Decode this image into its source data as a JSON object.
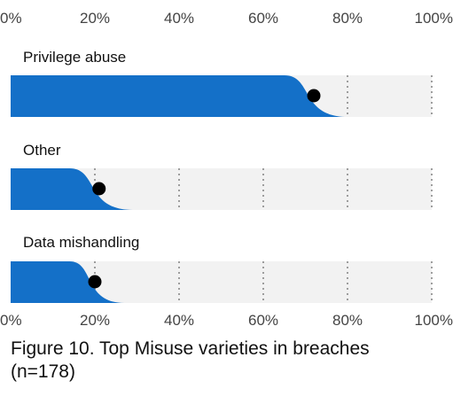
{
  "caption": "Figure 10. Top Misuse varieties in breaches (n=178)",
  "chart_data": {
    "type": "slanted-bar",
    "title": "",
    "xlabel": "",
    "ylabel": "",
    "xlim": [
      0,
      100
    ],
    "x_ticks": [
      "0%",
      "20%",
      "40%",
      "60%",
      "80%",
      "100%"
    ],
    "categories": [
      "Privilege abuse",
      "Other",
      "Data mishandling"
    ],
    "values": [
      72,
      21,
      20
    ],
    "interval_low": [
      65,
      14,
      14
    ],
    "interval_high": [
      80,
      29,
      27
    ],
    "grid": "dotted vertical at each 20%",
    "colors": {
      "bar": "#1470c8",
      "track": "#f2f2f2",
      "point": "#000000",
      "grid": "#888888"
    }
  }
}
